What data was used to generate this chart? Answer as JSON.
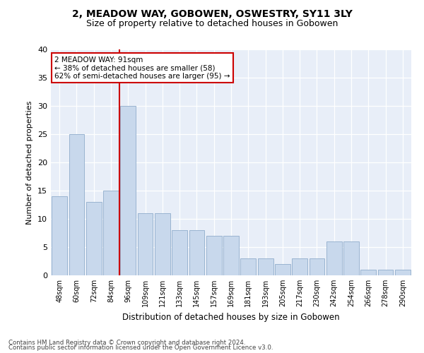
{
  "title": "2, MEADOW WAY, GOBOWEN, OSWESTRY, SY11 3LY",
  "subtitle": "Size of property relative to detached houses in Gobowen",
  "xlabel": "Distribution of detached houses by size in Gobowen",
  "ylabel": "Number of detached properties",
  "categories": [
    "48sqm",
    "60sqm",
    "72sqm",
    "84sqm",
    "96sqm",
    "109sqm",
    "121sqm",
    "133sqm",
    "145sqm",
    "157sqm",
    "169sqm",
    "181sqm",
    "193sqm",
    "205sqm",
    "217sqm",
    "230sqm",
    "242sqm",
    "254sqm",
    "266sqm",
    "278sqm",
    "290sqm"
  ],
  "values": [
    14,
    25,
    13,
    15,
    30,
    11,
    11,
    8,
    8,
    7,
    7,
    3,
    3,
    2,
    3,
    3,
    6,
    6,
    1,
    1,
    1
  ],
  "bar_color": "#c8d8ec",
  "bar_edge_color": "#9ab4d0",
  "vline_x_index": 4,
  "vline_color": "#cc0000",
  "annotation_text": "2 MEADOW WAY: 91sqm\n← 38% of detached houses are smaller (58)\n62% of semi-detached houses are larger (95) →",
  "annotation_box_color": "#ffffff",
  "annotation_box_edge": "#cc0000",
  "ylim": [
    0,
    40
  ],
  "yticks": [
    0,
    5,
    10,
    15,
    20,
    25,
    30,
    35,
    40
  ],
  "plot_bg_color": "#e8eef8",
  "footer1": "Contains HM Land Registry data © Crown copyright and database right 2024.",
  "footer2": "Contains public sector information licensed under the Open Government Licence v3.0.",
  "title_fontsize": 10,
  "subtitle_fontsize": 9,
  "bar_width": 0.9
}
